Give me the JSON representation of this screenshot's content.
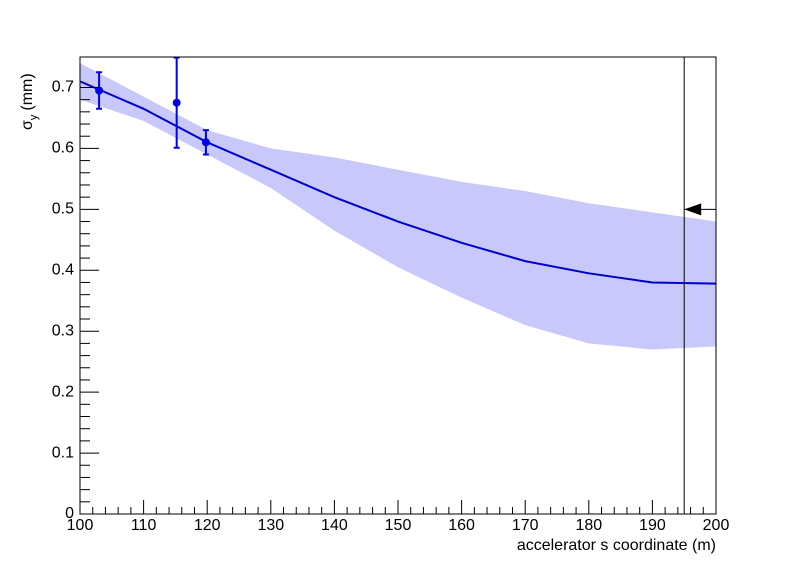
{
  "chart_data": {
    "type": "scatter",
    "xlabel": "accelerator s coordinate (m)",
    "ylabel": {
      "symbol": "σ",
      "subscript": "y",
      "unit": "(mm)"
    },
    "xlim": [
      100,
      200
    ],
    "ylim": [
      0,
      0.75
    ],
    "xticks": [
      100,
      110,
      120,
      130,
      140,
      150,
      160,
      170,
      180,
      190,
      200
    ],
    "yticks": [
      0,
      0.1,
      0.2,
      0.3,
      0.4,
      0.5,
      0.6,
      0.7
    ],
    "points": {
      "color": "#0000ee",
      "x": [
        103,
        115.2,
        119.8
      ],
      "values": [
        0.695,
        0.675,
        0.61
      ],
      "errors": [
        0.03,
        0.074,
        0.02
      ]
    },
    "fit": {
      "color": "#0000cc",
      "x": [
        100,
        110,
        120,
        130,
        140,
        150,
        160,
        170,
        180,
        190,
        200
      ],
      "values": [
        0.71,
        0.665,
        0.61,
        0.565,
        0.52,
        0.48,
        0.445,
        0.415,
        0.395,
        0.38,
        0.378
      ]
    },
    "band": {
      "color": "#c8c8fa",
      "x": [
        100,
        110,
        120,
        130,
        140,
        150,
        160,
        170,
        180,
        190,
        200
      ],
      "upper": [
        0.74,
        0.685,
        0.63,
        0.6,
        0.585,
        0.565,
        0.545,
        0.53,
        0.51,
        0.495,
        0.48
      ],
      "lower": [
        0.68,
        0.645,
        0.59,
        0.535,
        0.465,
        0.405,
        0.355,
        0.31,
        0.28,
        0.27,
        0.275
      ]
    },
    "reference": {
      "x": 195,
      "arrow_y": 0.5
    }
  }
}
